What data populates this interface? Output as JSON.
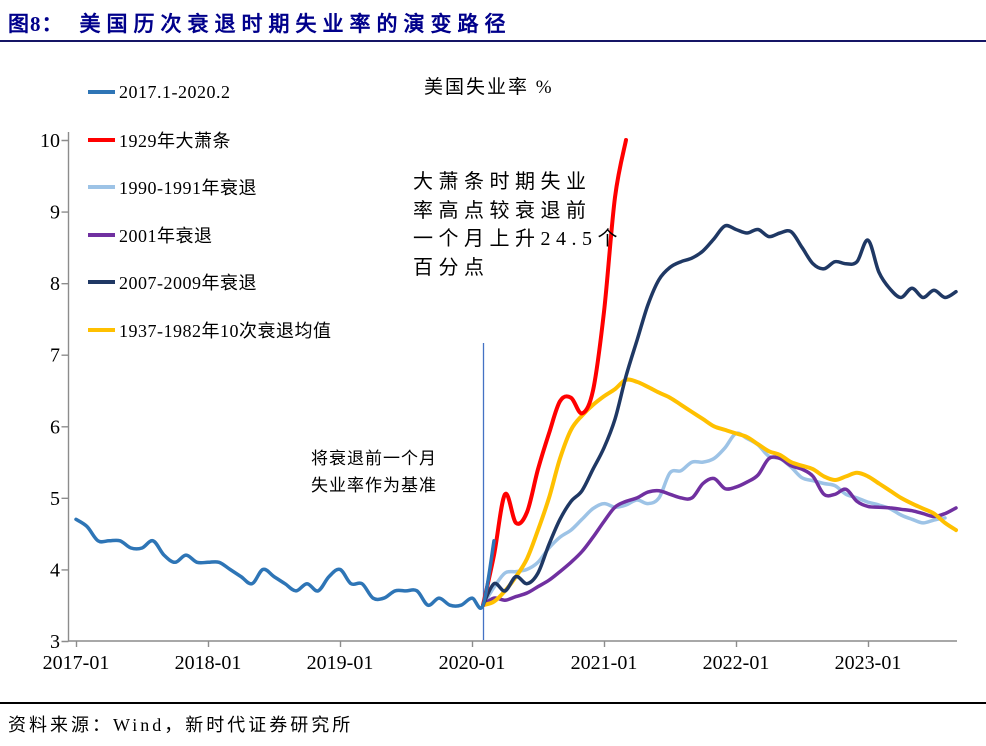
{
  "header": {
    "figure_label": "图8：",
    "title": "美国历次衰退时期失业率的演变路径"
  },
  "footer": {
    "source_label": "资料来源：",
    "source_text": "Wind，新时代证券研究所"
  },
  "chart_data": {
    "type": "line",
    "title": "美国失业率 %",
    "ylim": [
      3,
      10
    ],
    "y_ticks": [
      3,
      4,
      5,
      6,
      7,
      8,
      9,
      10
    ],
    "x_tick_labels": [
      "2017-01",
      "2018-01",
      "2019-01",
      "2020-01",
      "2021-01",
      "2022-01",
      "2023-01"
    ],
    "grid": "off",
    "legend_position": "left-column",
    "baseline_month": "2020-02",
    "annotations": [
      {
        "id": "depression-note",
        "text": "大萧条时期失业\n率高点较衰退前\n一个月上升24.5个\n百分点"
      },
      {
        "id": "baseline-note",
        "text": "将衰退前一个月\n失业率作为基准"
      }
    ],
    "series": [
      {
        "id": "unemp-2017-2020",
        "name": "2017.1-2020.2",
        "color": "#2E75B6",
        "width": 3.5,
        "align": "calendar",
        "start": "2017-01",
        "values": [
          4.7,
          4.6,
          4.4,
          4.4,
          4.4,
          4.3,
          4.3,
          4.4,
          4.2,
          4.1,
          4.2,
          4.1,
          4.1,
          4.1,
          4.0,
          3.9,
          3.8,
          4.0,
          3.9,
          3.8,
          3.7,
          3.8,
          3.7,
          3.9,
          4.0,
          3.8,
          3.8,
          3.6,
          3.6,
          3.7,
          3.7,
          3.7,
          3.5,
          3.6,
          3.5,
          3.5,
          3.6,
          3.5,
          4.4
        ]
      },
      {
        "id": "depression-1929",
        "name": "1929年大萧条",
        "color": "#FF0000",
        "width": 4,
        "align": "recession",
        "values": [
          3.5,
          4.2,
          5.05,
          4.65,
          4.8,
          5.4,
          5.9,
          6.35,
          6.4,
          6.18,
          6.5,
          7.6,
          9.2,
          10.0
        ]
      },
      {
        "id": "recession-1990-1991",
        "name": "1990-1991年衰退",
        "color": "#9DC3E6",
        "width": 3.5,
        "align": "recession",
        "values": [
          3.5,
          3.75,
          3.95,
          3.97,
          4.0,
          4.1,
          4.3,
          4.45,
          4.55,
          4.7,
          4.85,
          4.92,
          4.87,
          4.9,
          4.97,
          4.92,
          5.0,
          5.35,
          5.38,
          5.5,
          5.5,
          5.55,
          5.7,
          5.9,
          5.83,
          5.74,
          5.58,
          5.55,
          5.43,
          5.28,
          5.24,
          5.2,
          5.17,
          5.05,
          5.0,
          4.94,
          4.9,
          4.85,
          4.76,
          4.7,
          4.65,
          4.69,
          4.72
        ]
      },
      {
        "id": "recession-2001",
        "name": "2001年衰退",
        "color": "#7030A0",
        "width": 3.5,
        "align": "recession",
        "values": [
          3.5,
          3.6,
          3.57,
          3.62,
          3.67,
          3.76,
          3.85,
          3.97,
          4.1,
          4.25,
          4.45,
          4.67,
          4.87,
          4.95,
          5.0,
          5.08,
          5.1,
          5.05,
          5.0,
          5.0,
          5.2,
          5.27,
          5.13,
          5.15,
          5.22,
          5.32,
          5.55,
          5.55,
          5.45,
          5.4,
          5.3,
          5.05,
          5.05,
          5.12,
          4.95,
          4.88,
          4.87,
          4.86,
          4.84,
          4.82,
          4.78,
          4.74,
          4.78,
          4.86
        ]
      },
      {
        "id": "recession-2007-2009",
        "name": "2007-2009年衰退",
        "color": "#1F3864",
        "width": 3.5,
        "align": "recession",
        "values": [
          3.5,
          3.8,
          3.7,
          3.9,
          3.8,
          3.95,
          4.35,
          4.7,
          4.95,
          5.1,
          5.4,
          5.7,
          6.1,
          6.7,
          7.2,
          7.7,
          8.05,
          8.22,
          8.3,
          8.35,
          8.45,
          8.62,
          8.8,
          8.75,
          8.7,
          8.75,
          8.65,
          8.7,
          8.72,
          8.5,
          8.27,
          8.2,
          8.3,
          8.27,
          8.3,
          8.6,
          8.15,
          7.92,
          7.8,
          7.93,
          7.8,
          7.9,
          7.8,
          7.88
        ]
      },
      {
        "id": "avg-1937-1982",
        "name": "1937-1982年10次衰退均值",
        "color": "#FFC000",
        "width": 4,
        "align": "recession",
        "values": [
          3.5,
          3.55,
          3.7,
          3.9,
          4.15,
          4.55,
          5.0,
          5.55,
          5.95,
          6.15,
          6.3,
          6.42,
          6.52,
          6.65,
          6.62,
          6.55,
          6.47,
          6.4,
          6.3,
          6.2,
          6.1,
          6.0,
          5.95,
          5.9,
          5.85,
          5.75,
          5.65,
          5.6,
          5.5,
          5.45,
          5.4,
          5.3,
          5.25,
          5.3,
          5.35,
          5.3,
          5.2,
          5.1,
          5.0,
          4.92,
          4.85,
          4.78,
          4.65,
          4.55
        ]
      }
    ],
    "marker_color": "#4472C4",
    "axis_color": "#8C8C8C"
  }
}
